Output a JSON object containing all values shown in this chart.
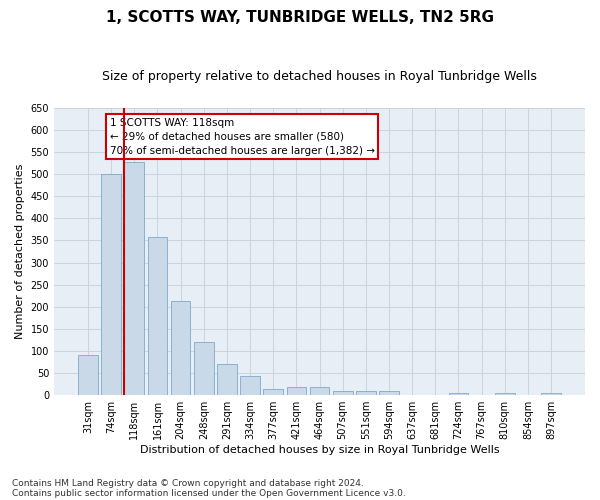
{
  "title": "1, SCOTTS WAY, TUNBRIDGE WELLS, TN2 5RG",
  "subtitle": "Size of property relative to detached houses in Royal Tunbridge Wells",
  "xlabel": "Distribution of detached houses by size in Royal Tunbridge Wells",
  "ylabel": "Number of detached properties",
  "categories": [
    "31sqm",
    "74sqm",
    "118sqm",
    "161sqm",
    "204sqm",
    "248sqm",
    "291sqm",
    "334sqm",
    "377sqm",
    "421sqm",
    "464sqm",
    "507sqm",
    "551sqm",
    "594sqm",
    "637sqm",
    "681sqm",
    "724sqm",
    "767sqm",
    "810sqm",
    "854sqm",
    "897sqm"
  ],
  "values": [
    90,
    500,
    527,
    358,
    212,
    121,
    70,
    43,
    15,
    19,
    19,
    10,
    10,
    9,
    0,
    0,
    5,
    0,
    5,
    0,
    5
  ],
  "bar_color": "#c9d9e8",
  "bar_edge_color": "#7aaac8",
  "highlight_bar_index": 2,
  "highlight_line_color": "#cc0000",
  "annotation_box_text": "1 SCOTTS WAY: 118sqm\n← 29% of detached houses are smaller (580)\n70% of semi-detached houses are larger (1,382) →",
  "annotation_box_color": "#cc0000",
  "ylim": [
    0,
    650
  ],
  "yticks": [
    0,
    50,
    100,
    150,
    200,
    250,
    300,
    350,
    400,
    450,
    500,
    550,
    600,
    650
  ],
  "grid_color": "#c8d4e0",
  "bg_color": "#e8eef5",
  "footer_line1": "Contains HM Land Registry data © Crown copyright and database right 2024.",
  "footer_line2": "Contains public sector information licensed under the Open Government Licence v3.0.",
  "title_fontsize": 11,
  "subtitle_fontsize": 9,
  "xlabel_fontsize": 8,
  "ylabel_fontsize": 8,
  "tick_fontsize": 7,
  "footer_fontsize": 6.5,
  "annotation_fontsize": 7.5
}
